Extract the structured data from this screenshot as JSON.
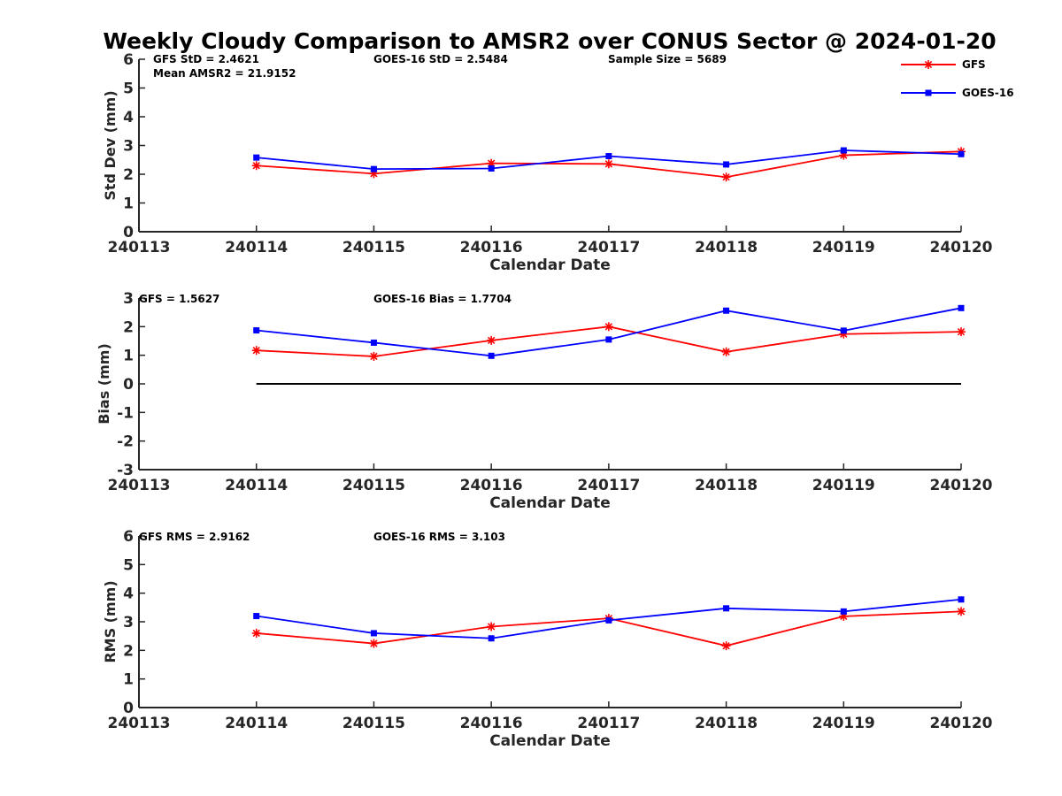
{
  "title": "Weekly Cloudy Comparison to AMSR2 over CONUS Sector @ 2024-01-20",
  "legend": {
    "position": "top-right",
    "items": [
      {
        "label": "GFS",
        "color": "#ff0000",
        "marker": "asterisk"
      },
      {
        "label": "GOES-16",
        "color": "#0000ff",
        "marker": "square"
      }
    ]
  },
  "chart_data": [
    {
      "type": "line",
      "xlabel": "Calendar Date",
      "ylabel": "Std Dev (mm)",
      "x_ticks": [
        "240113",
        "240114",
        "240115",
        "240116",
        "240117",
        "240118",
        "240119",
        "240120"
      ],
      "ylim": [
        0,
        6
      ],
      "y_ticks": [
        "0",
        "1",
        "2",
        "3",
        "4",
        "5",
        "6"
      ],
      "annotations": [
        "GFS StD = 2.4621",
        "Mean AMSR2 = 21.9152",
        "GOES-16 StD = 2.5484",
        "Sample Size = 5689"
      ],
      "x": [
        "240114",
        "240115",
        "240116",
        "240117",
        "240118",
        "240119",
        "240120"
      ],
      "series": [
        {
          "name": "GFS",
          "color": "#ff0000",
          "marker": "asterisk",
          "values": [
            2.3,
            2.02,
            2.38,
            2.36,
            1.9,
            2.66,
            2.79
          ]
        },
        {
          "name": "GOES-16",
          "color": "#0000ff",
          "marker": "square",
          "values": [
            2.58,
            2.18,
            2.2,
            2.63,
            2.34,
            2.83,
            2.7
          ]
        }
      ]
    },
    {
      "type": "line",
      "xlabel": "Calendar Date",
      "ylabel": "Bias (mm)",
      "x_ticks": [
        "240113",
        "240114",
        "240115",
        "240116",
        "240117",
        "240118",
        "240119",
        "240120"
      ],
      "ylim": [
        -3,
        3
      ],
      "y_ticks": [
        "-3",
        "-2",
        "-1",
        "0",
        "1",
        "2",
        "3"
      ],
      "annotations": [
        "GFS = 1.5627",
        "GOES-16 Bias  = 1.7704"
      ],
      "reference_line": {
        "y": 0,
        "from": "240114",
        "to": "240120",
        "color": "#000000"
      },
      "x": [
        "240114",
        "240115",
        "240116",
        "240117",
        "240118",
        "240119",
        "240120"
      ],
      "series": [
        {
          "name": "GFS",
          "color": "#ff0000",
          "marker": "asterisk",
          "values": [
            1.17,
            0.96,
            1.52,
            2.0,
            1.12,
            1.74,
            1.82
          ]
        },
        {
          "name": "GOES-16",
          "color": "#0000ff",
          "marker": "square",
          "values": [
            1.87,
            1.44,
            0.98,
            1.55,
            2.56,
            1.86,
            2.65
          ]
        }
      ]
    },
    {
      "type": "line",
      "xlabel": "Calendar Date",
      "ylabel": "RMS (mm)",
      "x_ticks": [
        "240113",
        "240114",
        "240115",
        "240116",
        "240117",
        "240118",
        "240119",
        "240120"
      ],
      "ylim": [
        0,
        6
      ],
      "y_ticks": [
        "0",
        "1",
        "2",
        "3",
        "4",
        "5",
        "6"
      ],
      "annotations": [
        "GFS RMS = 2.9162",
        "GOES-16 RMS = 3.103"
      ],
      "x": [
        "240114",
        "240115",
        "240116",
        "240117",
        "240118",
        "240119",
        "240120"
      ],
      "series": [
        {
          "name": "GFS",
          "color": "#ff0000",
          "marker": "asterisk",
          "values": [
            2.6,
            2.24,
            2.83,
            3.12,
            2.16,
            3.19,
            3.36
          ]
        },
        {
          "name": "GOES-16",
          "color": "#0000ff",
          "marker": "square",
          "values": [
            3.2,
            2.6,
            2.42,
            3.05,
            3.47,
            3.36,
            3.78
          ]
        }
      ]
    }
  ]
}
